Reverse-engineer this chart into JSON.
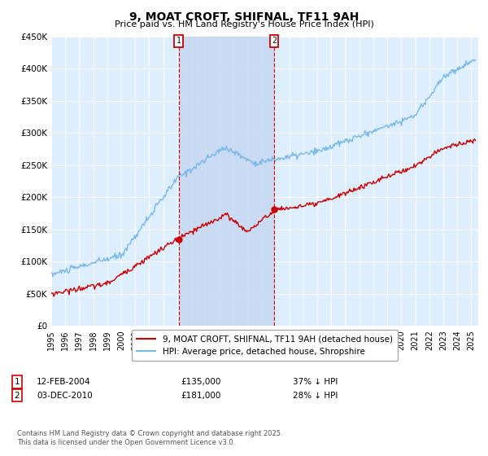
{
  "title": "9, MOAT CROFT, SHIFNAL, TF11 9AH",
  "subtitle": "Price paid vs. HM Land Registry's House Price Index (HPI)",
  "ylabel_ticks": [
    "£0",
    "£50K",
    "£100K",
    "£150K",
    "£200K",
    "£250K",
    "£300K",
    "£350K",
    "£400K",
    "£450K"
  ],
  "ylim": [
    0,
    450000
  ],
  "ytick_values": [
    0,
    50000,
    100000,
    150000,
    200000,
    250000,
    300000,
    350000,
    400000,
    450000
  ],
  "hpi_color": "#7ab8e8",
  "price_color": "#cc0000",
  "marker1_date_x": 2004.1,
  "marker2_date_x": 2010.92,
  "marker1_y": 135000,
  "marker2_y": 181000,
  "vline_color": "#cc0000",
  "plot_bg": "#ddeeff",
  "shade_color": "#c5d8f0",
  "legend_label_red": "9, MOAT CROFT, SHIFNAL, TF11 9AH (detached house)",
  "legend_label_blue": "HPI: Average price, detached house, Shropshire",
  "footnote": "Contains HM Land Registry data © Crown copyright and database right 2025.\nThis data is licensed under the Open Government Licence v3.0.",
  "xmin": 1995,
  "xmax": 2025.5
}
